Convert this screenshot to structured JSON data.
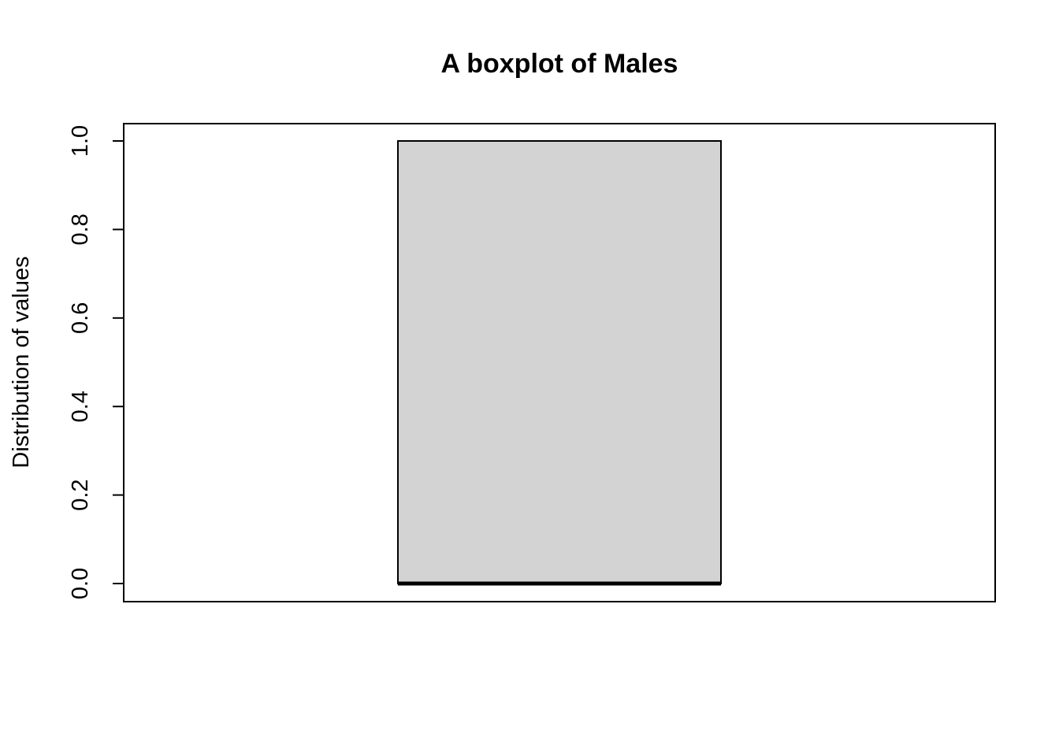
{
  "chart_data": {
    "type": "boxplot",
    "title": "A boxplot of Males",
    "xlabel": "",
    "ylabel": "Distribution of values",
    "ylim": [
      0,
      1
    ],
    "yticks": [
      0,
      0.2,
      0.4,
      0.6,
      0.8,
      1
    ],
    "ytick_labels": [
      "0.0",
      "0.2",
      "0.4",
      "0.6",
      "0.8",
      "1.0"
    ],
    "boxes": [
      {
        "min": 0,
        "q1": 0,
        "median": 0,
        "q3": 1,
        "max": 1
      }
    ],
    "grid": false,
    "colors": {
      "box_fill": "#d3d3d3",
      "stroke": "#000000",
      "background": "#ffffff"
    }
  }
}
